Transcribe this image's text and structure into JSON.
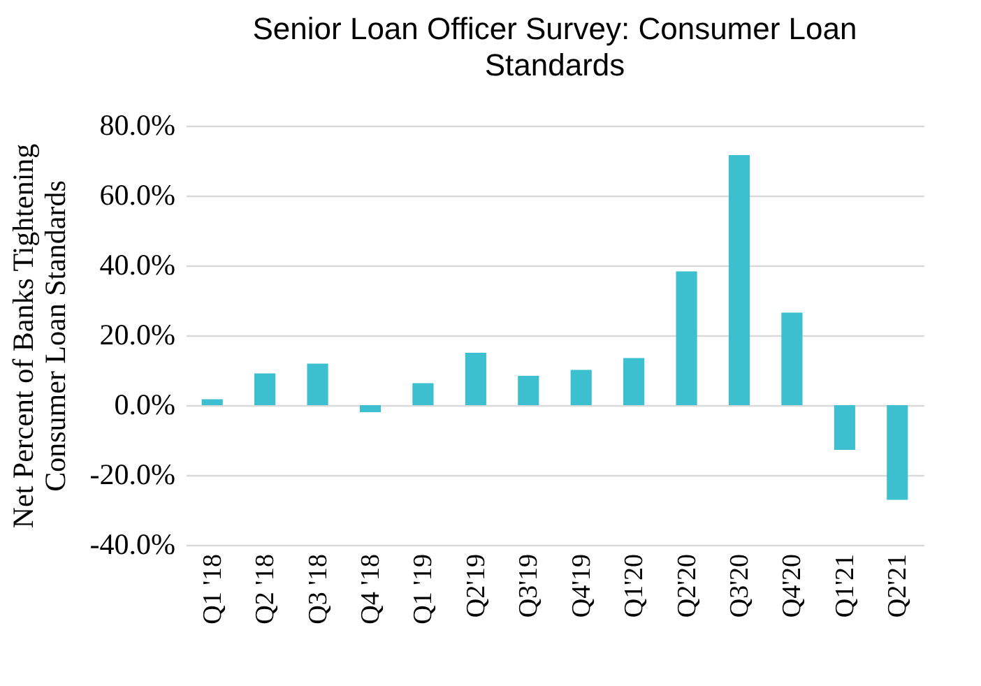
{
  "chart_data": {
    "type": "bar",
    "title": "Senior Loan Officer Survey:  Consumer Loan Standards",
    "ylabel": "Net Percent of Banks Tightening Consumer Loan Standards",
    "categories": [
      "Q1 '18",
      "Q2 '18",
      "Q3 '18",
      "Q4 '18",
      "Q1 '19",
      "Q2'19",
      "Q3'19",
      "Q4'19",
      "Q1'20",
      "Q2'20",
      "Q3'20",
      "Q4'20",
      "Q1'21",
      "Q2'21"
    ],
    "values": [
      1.7,
      9.1,
      11.9,
      -2.0,
      6.3,
      15.0,
      8.4,
      10.1,
      13.5,
      38.3,
      71.6,
      26.5,
      -12.8,
      -27.1
    ],
    "color": "#3cc0cf",
    "ylim": [
      -40,
      80
    ],
    "yticks": [
      {
        "value": -40,
        "label": "-40.0%"
      },
      {
        "value": -20,
        "label": "-20.0%"
      },
      {
        "value": 0,
        "label": "0.0%"
      },
      {
        "value": 20,
        "label": "20.0%"
      },
      {
        "value": 40,
        "label": "40.0%"
      },
      {
        "value": 60,
        "label": "60.0%"
      },
      {
        "value": 80,
        "label": "80.0%"
      }
    ],
    "grid": "y"
  }
}
